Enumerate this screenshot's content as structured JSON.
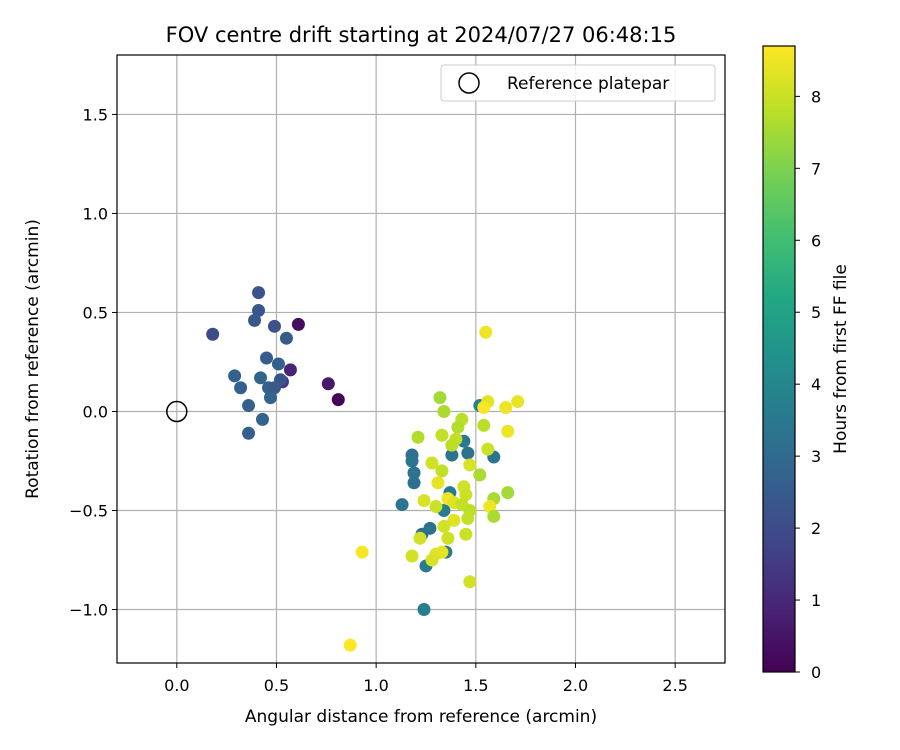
{
  "chart_data": {
    "type": "scatter",
    "title": "FOV centre drift starting at 2024/07/27 06:48:15",
    "xlabel": "Angular distance from reference (arcmin)",
    "ylabel": "Rotation from reference (arcmin)",
    "xlim": [
      -0.3,
      2.75
    ],
    "ylim": [
      -1.27,
      1.8
    ],
    "xticks": [
      0.0,
      0.5,
      1.0,
      1.5,
      2.0,
      2.5
    ],
    "xtick_labels": [
      "0.0",
      "0.5",
      "1.0",
      "1.5",
      "2.0",
      "2.5"
    ],
    "yticks": [
      -1.0,
      -0.5,
      0.0,
      0.5,
      1.0,
      1.5
    ],
    "ytick_labels": [
      "−1.0",
      "−0.5",
      "0.0",
      "0.5",
      "1.0",
      "1.5"
    ],
    "grid": true,
    "legend": {
      "position": "top-right",
      "entries": [
        "Reference platepar"
      ]
    },
    "reference_point": {
      "x": 0.0,
      "y": 0.0,
      "label": "Reference platepar"
    },
    "colorbar": {
      "label": "Hours from first FF file",
      "colormap": "viridis",
      "range": [
        0,
        8.7
      ],
      "ticks": [
        0,
        1,
        2,
        3,
        4,
        5,
        6,
        7,
        8
      ],
      "tick_labels": [
        "0",
        "1",
        "2",
        "3",
        "4",
        "5",
        "6",
        "7",
        "8"
      ]
    },
    "points": [
      {
        "x": 0.61,
        "y": 0.44,
        "c": 0.3
      },
      {
        "x": 0.81,
        "y": 0.06,
        "c": 0.1
      },
      {
        "x": 0.76,
        "y": 0.14,
        "c": 0.6
      },
      {
        "x": 0.57,
        "y": 0.21,
        "c": 0.9
      },
      {
        "x": 0.53,
        "y": 0.15,
        "c": 1.3
      },
      {
        "x": 0.18,
        "y": 0.39,
        "c": 2.0
      },
      {
        "x": 0.41,
        "y": 0.6,
        "c": 2.2
      },
      {
        "x": 0.41,
        "y": 0.51,
        "c": 2.3
      },
      {
        "x": 0.39,
        "y": 0.46,
        "c": 2.4
      },
      {
        "x": 0.49,
        "y": 0.43,
        "c": 2.2
      },
      {
        "x": 0.55,
        "y": 0.37,
        "c": 2.5
      },
      {
        "x": 0.45,
        "y": 0.27,
        "c": 2.5
      },
      {
        "x": 0.51,
        "y": 0.24,
        "c": 2.6
      },
      {
        "x": 0.29,
        "y": 0.18,
        "c": 2.7
      },
      {
        "x": 0.42,
        "y": 0.17,
        "c": 2.8
      },
      {
        "x": 0.52,
        "y": 0.16,
        "c": 2.3
      },
      {
        "x": 0.32,
        "y": 0.12,
        "c": 2.6
      },
      {
        "x": 0.46,
        "y": 0.12,
        "c": 2.7
      },
      {
        "x": 0.49,
        "y": 0.12,
        "c": 2.5
      },
      {
        "x": 0.47,
        "y": 0.07,
        "c": 2.8
      },
      {
        "x": 0.36,
        "y": 0.03,
        "c": 2.7
      },
      {
        "x": 0.43,
        "y": -0.04,
        "c": 2.8
      },
      {
        "x": 0.36,
        "y": -0.11,
        "c": 2.6
      },
      {
        "x": 1.52,
        "y": 0.03,
        "c": 3.8
      },
      {
        "x": 1.44,
        "y": -0.15,
        "c": 3.5
      },
      {
        "x": 1.46,
        "y": -0.21,
        "c": 3.3
      },
      {
        "x": 1.38,
        "y": -0.22,
        "c": 3.3
      },
      {
        "x": 1.59,
        "y": -0.23,
        "c": 3.4
      },
      {
        "x": 1.18,
        "y": -0.22,
        "c": 3.2
      },
      {
        "x": 1.18,
        "y": -0.25,
        "c": 3.4
      },
      {
        "x": 1.19,
        "y": -0.31,
        "c": 3.3
      },
      {
        "x": 1.19,
        "y": -0.36,
        "c": 3.2
      },
      {
        "x": 1.37,
        "y": -0.41,
        "c": 3.5
      },
      {
        "x": 1.13,
        "y": -0.47,
        "c": 3.4
      },
      {
        "x": 1.34,
        "y": -0.5,
        "c": 3.6
      },
      {
        "x": 1.27,
        "y": -0.59,
        "c": 3.3
      },
      {
        "x": 1.23,
        "y": -0.62,
        "c": 3.2
      },
      {
        "x": 1.35,
        "y": -0.71,
        "c": 3.5
      },
      {
        "x": 1.25,
        "y": -0.78,
        "c": 3.6
      },
      {
        "x": 1.24,
        "y": -1.0,
        "c": 3.7
      },
      {
        "x": 1.32,
        "y": 0.07,
        "c": 7.5
      },
      {
        "x": 1.34,
        "y": 0.0,
        "c": 7.6
      },
      {
        "x": 1.43,
        "y": -0.04,
        "c": 7.8
      },
      {
        "x": 1.41,
        "y": -0.08,
        "c": 7.7
      },
      {
        "x": 1.4,
        "y": -0.14,
        "c": 7.9
      },
      {
        "x": 1.38,
        "y": -0.17,
        "c": 7.8
      },
      {
        "x": 1.33,
        "y": -0.12,
        "c": 7.9
      },
      {
        "x": 1.21,
        "y": -0.13,
        "c": 7.7
      },
      {
        "x": 1.54,
        "y": -0.07,
        "c": 7.8
      },
      {
        "x": 1.56,
        "y": -0.19,
        "c": 8.0
      },
      {
        "x": 1.47,
        "y": -0.27,
        "c": 8.2
      },
      {
        "x": 1.28,
        "y": -0.26,
        "c": 8.1
      },
      {
        "x": 1.52,
        "y": -0.32,
        "c": 7.6
      },
      {
        "x": 1.33,
        "y": -0.3,
        "c": 7.9
      },
      {
        "x": 1.31,
        "y": -0.36,
        "c": 8.4
      },
      {
        "x": 1.44,
        "y": -0.38,
        "c": 8.1
      },
      {
        "x": 1.45,
        "y": -0.42,
        "c": 8.0
      },
      {
        "x": 1.36,
        "y": -0.44,
        "c": 8.5
      },
      {
        "x": 1.39,
        "y": -0.46,
        "c": 8.3
      },
      {
        "x": 1.24,
        "y": -0.45,
        "c": 8.2
      },
      {
        "x": 1.3,
        "y": -0.48,
        "c": 8.0
      },
      {
        "x": 1.43,
        "y": -0.47,
        "c": 7.9
      },
      {
        "x": 1.47,
        "y": -0.5,
        "c": 7.8
      },
      {
        "x": 1.46,
        "y": -0.54,
        "c": 7.9
      },
      {
        "x": 1.39,
        "y": -0.55,
        "c": 8.3
      },
      {
        "x": 1.34,
        "y": -0.58,
        "c": 8.1
      },
      {
        "x": 1.36,
        "y": -0.64,
        "c": 8.0
      },
      {
        "x": 1.22,
        "y": -0.64,
        "c": 8.1
      },
      {
        "x": 1.45,
        "y": -0.62,
        "c": 8.0
      },
      {
        "x": 1.33,
        "y": -0.71,
        "c": 8.4
      },
      {
        "x": 1.3,
        "y": -0.72,
        "c": 8.3
      },
      {
        "x": 1.28,
        "y": -0.75,
        "c": 8.2
      },
      {
        "x": 1.18,
        "y": -0.73,
        "c": 8.1
      },
      {
        "x": 1.47,
        "y": -0.86,
        "c": 8.1
      },
      {
        "x": 1.55,
        "y": 0.4,
        "c": 8.5
      },
      {
        "x": 1.56,
        "y": 0.05,
        "c": 8.3
      },
      {
        "x": 1.54,
        "y": 0.02,
        "c": 8.6
      },
      {
        "x": 1.65,
        "y": 0.02,
        "c": 8.5
      },
      {
        "x": 1.71,
        "y": 0.05,
        "c": 8.4
      },
      {
        "x": 1.66,
        "y": -0.1,
        "c": 8.5
      },
      {
        "x": 1.59,
        "y": -0.44,
        "c": 7.6
      },
      {
        "x": 1.66,
        "y": -0.41,
        "c": 7.5
      },
      {
        "x": 1.57,
        "y": -0.48,
        "c": 8.5
      },
      {
        "x": 1.59,
        "y": -0.53,
        "c": 7.6
      },
      {
        "x": 0.93,
        "y": -0.71,
        "c": 8.6
      },
      {
        "x": 0.87,
        "y": -1.18,
        "c": 8.7
      }
    ]
  }
}
